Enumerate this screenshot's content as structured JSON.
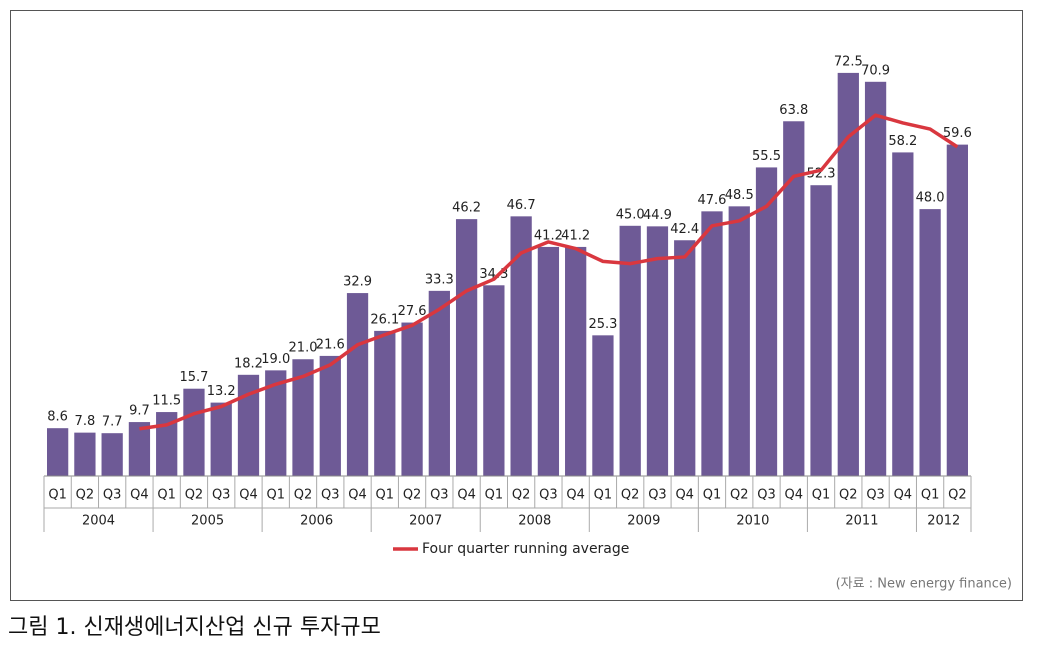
{
  "chart_data": {
    "type": "bar",
    "categories": [
      "Q1",
      "Q2",
      "Q3",
      "Q4",
      "Q1",
      "Q2",
      "Q3",
      "Q4",
      "Q1",
      "Q2",
      "Q3",
      "Q4",
      "Q1",
      "Q2",
      "Q3",
      "Q4",
      "Q1",
      "Q2",
      "Q3",
      "Q4",
      "Q1",
      "Q2",
      "Q3",
      "Q4",
      "Q1",
      "Q2",
      "Q3",
      "Q4",
      "Q1",
      "Q2",
      "Q3",
      "Q4",
      "Q1",
      "Q2"
    ],
    "years": [
      "2004",
      "2005",
      "2006",
      "2007",
      "2008",
      "2009",
      "2010",
      "2011",
      "2012"
    ],
    "values": [
      8.6,
      7.8,
      7.7,
      9.7,
      11.5,
      15.7,
      13.2,
      18.2,
      19.0,
      21.0,
      21.6,
      32.9,
      26.1,
      27.6,
      33.3,
      46.2,
      34.3,
      46.7,
      41.2,
      41.2,
      25.3,
      45.0,
      44.9,
      42.4,
      47.6,
      48.5,
      55.5,
      63.8,
      52.3,
      72.5,
      70.9,
      58.2,
      48.0,
      59.6
    ],
    "value_labels": [
      "8.6",
      "7.8",
      "7.7",
      "9.7",
      "11.5",
      "15.7",
      "13.2",
      "18.2",
      "19.0",
      "21.0",
      "21.6",
      "32.9",
      "26.1",
      "27.6",
      "33.3",
      "46.2",
      "34.3",
      "46.7",
      "41.2",
      "41.2",
      "25.3",
      "45.0",
      "44.9",
      "42.4",
      "47.6",
      "48.5",
      "55.5",
      "63.8",
      "52.3",
      "72.5",
      "70.9",
      "58.2",
      "48.0",
      "59.6"
    ],
    "color": "#6e5a96",
    "series": [
      {
        "name": "Four quarter running average",
        "color": "#d9373f",
        "type": "line",
        "values": [
          null,
          null,
          null,
          8.5,
          9.2,
          11.2,
          12.5,
          14.7,
          16.5,
          17.9,
          20.0,
          23.6,
          25.4,
          27.1,
          30.0,
          33.3,
          35.4,
          40.1,
          42.1,
          40.9,
          38.6,
          38.2,
          39.1,
          39.4,
          45.0,
          45.9,
          48.5,
          53.9,
          55.0,
          61.0,
          64.9,
          63.5,
          62.4,
          59.2
        ]
      }
    ],
    "source": "(자료 : New energy finance)",
    "caption": "그림 1. 신재생에너지산업 신규 투자규모"
  }
}
